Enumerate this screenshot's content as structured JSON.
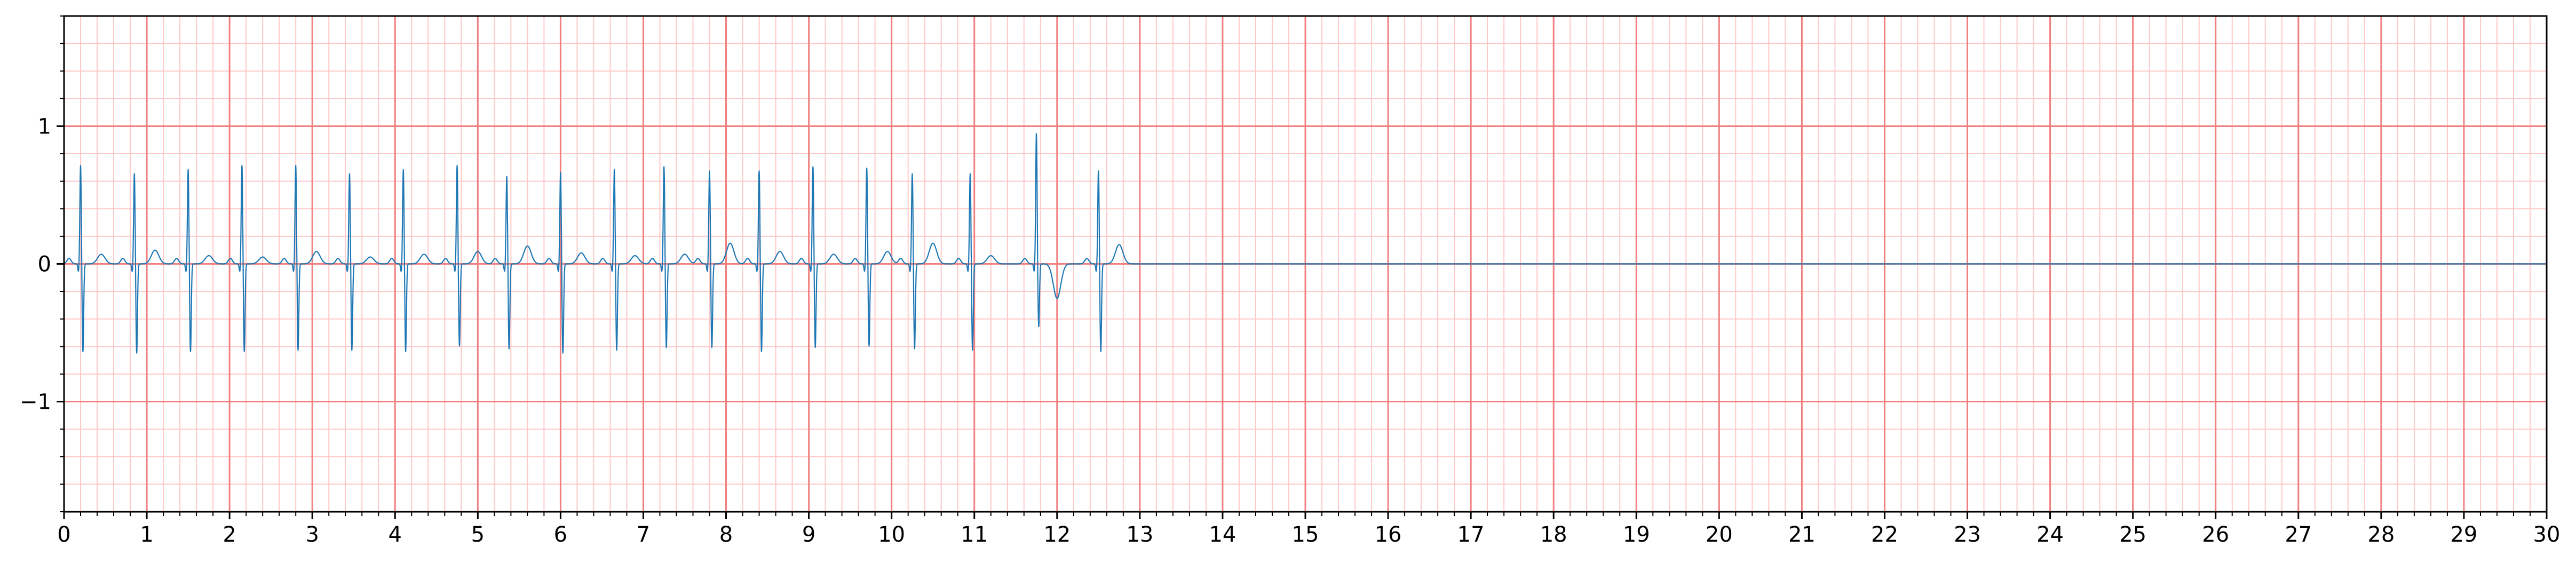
{
  "chart_data": {
    "type": "line",
    "title": "",
    "xlabel": "",
    "ylabel": "",
    "xlim": [
      0,
      30
    ],
    "ylim": [
      -1.8,
      1.8
    ],
    "x_ticks": [
      0,
      1,
      2,
      3,
      4,
      5,
      6,
      7,
      8,
      9,
      10,
      11,
      12,
      13,
      14,
      15,
      16,
      17,
      18,
      19,
      20,
      21,
      22,
      23,
      24,
      25,
      26,
      27,
      28,
      29,
      30
    ],
    "x_tick_labels": [
      "0",
      "1",
      "2",
      "3",
      "4",
      "5",
      "6",
      "7",
      "8",
      "9",
      "10",
      "11",
      "12",
      "13",
      "14",
      "15",
      "16",
      "17",
      "18",
      "19",
      "20",
      "21",
      "22",
      "23",
      "24",
      "25",
      "26",
      "27",
      "28",
      "29",
      "30"
    ],
    "y_ticks": [
      -1,
      0,
      1
    ],
    "y_tick_labels": [
      "−1",
      "0",
      "1"
    ],
    "grid": {
      "major": true,
      "minor": true,
      "major_x_step": 1,
      "minor_x_step": 0.2,
      "major_y_step": 1,
      "minor_y_step": 0.2,
      "major_color": "#f08080",
      "minor_color": "#ffc8c8"
    },
    "series": [
      {
        "color": "#1f77b4",
        "signal_end": 13,
        "baseline_until": 30,
        "beats": [
          {
            "t": 0.2,
            "r": 0.72,
            "s": -0.64,
            "tw": 0.07
          },
          {
            "t": 0.85,
            "r": 0.66,
            "s": -0.65,
            "tw": 0.1
          },
          {
            "t": 1.5,
            "r": 0.69,
            "s": -0.64,
            "tw": 0.06
          },
          {
            "t": 2.15,
            "r": 0.72,
            "s": -0.64,
            "tw": 0.05
          },
          {
            "t": 2.8,
            "r": 0.72,
            "s": -0.63,
            "tw": 0.09
          },
          {
            "t": 3.45,
            "r": 0.66,
            "s": -0.63,
            "tw": 0.05
          },
          {
            "t": 4.1,
            "r": 0.69,
            "s": -0.64,
            "tw": 0.07
          },
          {
            "t": 4.75,
            "r": 0.72,
            "s": -0.6,
            "tw": 0.09
          },
          {
            "t": 5.35,
            "r": 0.64,
            "s": -0.62,
            "tw": 0.13
          },
          {
            "t": 6.0,
            "r": 0.67,
            "s": -0.65,
            "tw": 0.08
          },
          {
            "t": 6.65,
            "r": 0.69,
            "s": -0.63,
            "tw": 0.06
          },
          {
            "t": 7.25,
            "r": 0.71,
            "s": -0.61,
            "tw": 0.07
          },
          {
            "t": 7.8,
            "r": 0.68,
            "s": -0.61,
            "tw": 0.15
          },
          {
            "t": 8.4,
            "r": 0.68,
            "s": -0.64,
            "tw": 0.09
          },
          {
            "t": 9.05,
            "r": 0.71,
            "s": -0.61,
            "tw": 0.07
          },
          {
            "t": 9.7,
            "r": 0.7,
            "s": -0.6,
            "tw": 0.09
          },
          {
            "t": 10.25,
            "r": 0.66,
            "s": -0.62,
            "tw": 0.15
          },
          {
            "t": 10.95,
            "r": 0.66,
            "s": -0.63,
            "tw": 0.06
          },
          {
            "t": 11.75,
            "r": 0.95,
            "s": -0.46,
            "tw": -0.25
          },
          {
            "t": 12.5,
            "r": 0.68,
            "s": -0.64,
            "tw": 0.14
          }
        ]
      }
    ]
  }
}
